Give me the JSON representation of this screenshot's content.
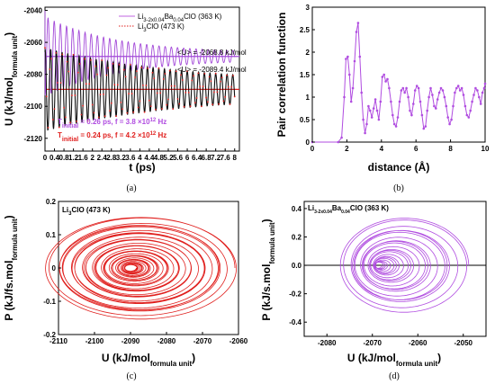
{
  "chart_data": [
    {
      "id": "a",
      "type": "line",
      "panel_label": "(a)",
      "xlabel": "t (ps)",
      "ylabel_main": "U (kJ/mol",
      "ylabel_sub": "formula unit",
      "ylabel_tail": ")",
      "xlim": [
        0,
        8.2
      ],
      "ylim": [
        -2128,
        -2038
      ],
      "xticks": [
        "0",
        "0.4",
        "0.8",
        "1.2",
        "1.6",
        "2",
        "2.4",
        "2.8",
        "3.2",
        "3.6",
        "4",
        "4.4",
        "4.8",
        "5.2",
        "5.6",
        "6",
        "6.4",
        "6.8",
        "7.2",
        "7.6",
        "8"
      ],
      "xtick_values": [
        0,
        0.4,
        0.8,
        1.2,
        1.6,
        2,
        2.4,
        2.8,
        3.2,
        3.6,
        4,
        4.4,
        4.8,
        5.2,
        5.6,
        6,
        6.4,
        6.8,
        7.2,
        7.6,
        8
      ],
      "yticks": [
        "-2040",
        "-2060",
        "-2080",
        "-2100",
        "-2120"
      ],
      "ytick_values": [
        -2040,
        -2060,
        -2080,
        -2100,
        -2120
      ],
      "legend": [
        {
          "label_pre": "Li",
          "sub1": "3-2x0.04",
          "mid": "Ba",
          "sub2": "0.04",
          "post": "ClO (363 K)",
          "color": "#c266e0",
          "style": "solid"
        },
        {
          "label_pre": "Li",
          "sub1": "3",
          "mid": "ClO (473 K)",
          "sub2": "",
          "post": "",
          "color": "#e0201e",
          "style": "dotted"
        }
      ],
      "series": [
        {
          "name": "Li3-2x0.04Ba0.04ClO (363 K)",
          "color": "#a349d8",
          "mean": -2068.8,
          "start": -2040,
          "period_ps": 0.26,
          "amp0": 25,
          "decay_ps": 3.0,
          "amp_floor": 2.0
        },
        {
          "name": "Li3ClO (473 K)",
          "color": "#111111",
          "marker_color": "#e0201e",
          "mean": -2089.4,
          "start": -2066,
          "period_ps": 0.24,
          "amp0": 26,
          "decay_ps": 5.5,
          "amp_floor": 4.0
        }
      ],
      "hlines": [
        {
          "y": -2068.8,
          "color": "#a349d8",
          "label": "<U> = -2068.8 kJ/mol"
        },
        {
          "y": -2089.4,
          "color": "#e0201e",
          "label": "<U> = -2089.4 kJ/mol"
        }
      ],
      "annotations": [
        {
          "text_pre": "T",
          "sub": "initial",
          "text_post": " = 0.26 ps, f = 3.8 ×10",
          "sup": "12",
          "tail": " Hz",
          "color": "#b04ce0"
        },
        {
          "text_pre": "T",
          "sub": "initial",
          "text_post": " = 0.24 ps, f = 4.2 ×10",
          "sup": "12",
          "tail": " Hz",
          "color": "#e0201e"
        }
      ]
    },
    {
      "id": "b",
      "type": "line",
      "panel_label": "(b)",
      "xlabel": "distance (Å)",
      "ylabel": "Pair correlation function",
      "xlim": [
        0,
        10
      ],
      "ylim": [
        0,
        3
      ],
      "xticks": [
        "0",
        "2",
        "4",
        "6",
        "8",
        "10"
      ],
      "xtick_values": [
        0,
        2,
        4,
        6,
        8,
        10
      ],
      "yticks": [
        "0",
        "0.5",
        "1",
        "1.5",
        "2",
        "2.5",
        "3"
      ],
      "ytick_values": [
        0,
        0.5,
        1,
        1.5,
        2,
        2.5,
        3
      ],
      "color": "#b04ce0",
      "x": [
        0,
        1.5,
        1.7,
        1.85,
        1.95,
        2.05,
        2.15,
        2.25,
        2.35,
        2.45,
        2.55,
        2.65,
        2.75,
        2.85,
        2.95,
        3.05,
        3.15,
        3.25,
        3.35,
        3.45,
        3.55,
        3.65,
        3.75,
        3.85,
        3.95,
        4.05,
        4.15,
        4.25,
        4.35,
        4.45,
        4.55,
        4.65,
        4.75,
        4.85,
        4.95,
        5.05,
        5.15,
        5.25,
        5.35,
        5.45,
        5.55,
        5.65,
        5.75,
        5.85,
        5.95,
        6.05,
        6.15,
        6.25,
        6.35,
        6.45,
        6.55,
        6.65,
        6.75,
        6.85,
        6.95,
        7.05,
        7.15,
        7.25,
        7.35,
        7.45,
        7.55,
        7.65,
        7.75,
        7.85,
        7.95,
        8.05,
        8.15,
        8.25,
        8.35,
        8.45,
        8.55,
        8.65,
        8.75,
        8.85,
        8.95,
        9.05,
        9.15,
        9.25,
        9.35,
        9.45,
        9.55,
        9.65,
        9.75,
        9.85,
        9.95,
        10
      ],
      "y": [
        0,
        0,
        0.1,
        1.0,
        1.85,
        1.9,
        1.5,
        0.9,
        1.2,
        1.8,
        2.45,
        2.65,
        1.9,
        1.1,
        0.5,
        0.2,
        0.4,
        0.8,
        0.7,
        0.55,
        0.75,
        0.95,
        0.7,
        0.5,
        0.9,
        1.45,
        1.5,
        1.35,
        1.4,
        1.2,
        0.9,
        0.6,
        0.4,
        0.35,
        0.55,
        0.9,
        1.15,
        1.2,
        1.1,
        1.2,
        1.0,
        0.7,
        0.6,
        0.85,
        1.15,
        1.25,
        1.2,
        0.9,
        0.6,
        0.3,
        0.35,
        0.7,
        1.0,
        1.2,
        1.05,
        0.8,
        0.75,
        0.95,
        1.1,
        1.2,
        1.15,
        1.0,
        0.8,
        0.55,
        0.4,
        0.5,
        0.8,
        1.1,
        1.2,
        1.25,
        1.15,
        1.2,
        1.05,
        0.8,
        0.6,
        0.55,
        0.7,
        0.9,
        1.05,
        1.2,
        1.15,
        1.0,
        0.85,
        1.1,
        1.2,
        1.3
      ]
    },
    {
      "id": "c",
      "type": "line",
      "panel_label": "(c)",
      "inset_pre": "Li",
      "inset_sub": "3",
      "inset_post": "ClO (473 K)",
      "xlabel_main": "U (kJ/mol",
      "xlabel_sub": "formula unit",
      "xlabel_tail": ")",
      "ylabel_main": "P (kJ/fs.mol",
      "ylabel_sub": "formula unit",
      "ylabel_tail": ")",
      "xlim": [
        -2110,
        -2060
      ],
      "ylim": [
        -0.2,
        0.2
      ],
      "xticks": [
        "-2110",
        "-2100",
        "-2090",
        "-2080",
        "-2070",
        "-2060"
      ],
      "xtick_values": [
        -2110,
        -2100,
        -2090,
        -2080,
        -2070,
        -2060
      ],
      "yticks": [
        "-0.2",
        "-0.1",
        "0",
        "0.1",
        "0.2"
      ],
      "ytick_values": [
        -0.2,
        -0.1,
        0,
        0.1,
        0.2
      ],
      "color": "#e0201e",
      "center": [
        -2090,
        0.0
      ],
      "rx_max": 26,
      "ry_max": 0.15,
      "turns": 38
    },
    {
      "id": "d",
      "type": "line",
      "panel_label": "(d)",
      "inset_pre": "Li",
      "inset_sub1": "3-2x0.04",
      "inset_mid": "Ba",
      "inset_sub2": "0.04",
      "inset_post": "ClO (363 K)",
      "xlabel_main": "U (kJ/mol",
      "xlabel_sub": "formula unit",
      "xlabel_tail": ")",
      "ylabel_main": "P (kJ/s.mol",
      "ylabel_sub": "formula unit",
      "ylabel_tail": ")",
      "xlim": [
        -2085,
        -2045
      ],
      "ylim": [
        -0.5,
        0.45
      ],
      "xticks": [
        "-2080",
        "-2070",
        "-2060",
        "-2050"
      ],
      "xtick_values": [
        -2080,
        -2070,
        -2060,
        -2050
      ],
      "yticks": [
        "-0.4",
        "-0.2",
        "0.0",
        "0.2",
        "0.4"
      ],
      "ytick_values": [
        -0.4,
        -0.2,
        0,
        0.2,
        0.4
      ],
      "color": "#b04ce0",
      "center": [
        -2068.8,
        0.0
      ],
      "rx_max": 14,
      "ry_max": 0.33,
      "turns": 22
    }
  ]
}
